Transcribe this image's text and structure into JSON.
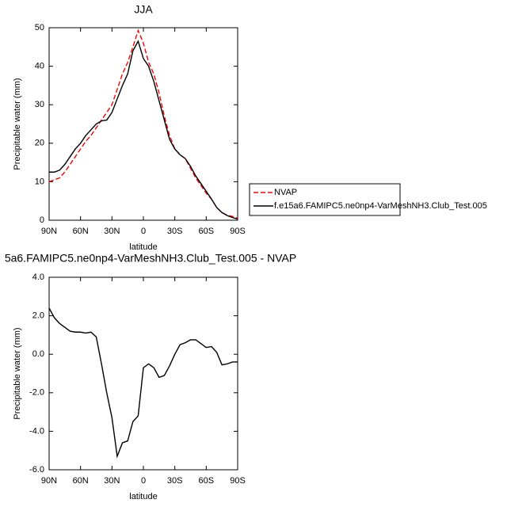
{
  "chart_data": [
    {
      "type": "line",
      "title": "JJA",
      "xlabel": "latitude",
      "ylabel": "Precipitable water (mm)",
      "x": [
        90,
        85,
        80,
        75,
        70,
        65,
        60,
        55,
        50,
        45,
        40,
        35,
        30,
        25,
        20,
        15,
        10,
        5,
        0,
        -5,
        -10,
        -15,
        -20,
        -25,
        -30,
        -35,
        -40,
        -45,
        -50,
        -55,
        -60,
        -65,
        -70,
        -75,
        -80,
        -85,
        -90
      ],
      "series": [
        {
          "name": "NVAP",
          "color": "#ff0000",
          "style": "dashed",
          "values": [
            10,
            10.5,
            11,
            12.5,
            14.5,
            16.5,
            18.5,
            20.5,
            22,
            24,
            26,
            28,
            30,
            34,
            38,
            41,
            45,
            49.3,
            46,
            41,
            38,
            33,
            27,
            22,
            18.5,
            17,
            16,
            13.5,
            11,
            9,
            7,
            5.5,
            3.3,
            2,
            1.3,
            1,
            0.5
          ]
        },
        {
          "name": "f.e15a6.FAMIPC5.ne0np4-VarMeshNH3.Club_Test.005",
          "color": "#000000",
          "style": "solid",
          "values": [
            12.5,
            12.5,
            13,
            14.5,
            16.5,
            18.5,
            20,
            22,
            23.5,
            25,
            25.8,
            26,
            28,
            31.5,
            35,
            38,
            44,
            46.5,
            42,
            40,
            36,
            31,
            26,
            21,
            18.5,
            17,
            16,
            14,
            11.5,
            9.5,
            7.5,
            5.5,
            3.3,
            2,
            1.2,
            0.7,
            0.3
          ]
        }
      ],
      "xlim": [
        90,
        -90
      ],
      "xticks": [
        {
          "value": 90,
          "label": "90N"
        },
        {
          "value": 60,
          "label": "60N"
        },
        {
          "value": 30,
          "label": "30N"
        },
        0,
        {
          "value": -30,
          "label": "30S"
        },
        {
          "value": -60,
          "label": "60S"
        },
        {
          "value": -90,
          "label": "90S"
        }
      ],
      "ylim": [
        0,
        50
      ],
      "yticks": [
        0,
        10,
        20,
        30,
        40,
        50
      ],
      "legend": "outside right"
    },
    {
      "type": "line",
      "title": "5a6.FAMIPC5.ne0np4-VarMeshNH3.Club_Test.005 - NVAP",
      "xlabel": "latitude",
      "ylabel": "Precipitable water (mm)",
      "x": [
        90,
        85,
        80,
        75,
        70,
        65,
        60,
        55,
        50,
        45,
        40,
        35,
        30,
        25,
        20,
        15,
        10,
        5,
        0,
        -5,
        -10,
        -15,
        -20,
        -25,
        -30,
        -35,
        -40,
        -45,
        -50,
        -55,
        -60,
        -65,
        -70,
        -75,
        -80,
        -85,
        -90
      ],
      "values": [
        2.4,
        1.9,
        1.6,
        1.4,
        1.2,
        1.15,
        1.15,
        1.1,
        1.15,
        0.9,
        -0.5,
        -2,
        -3.3,
        -5.3,
        -4.6,
        -4.5,
        -3.5,
        -3.2,
        -0.7,
        -0.5,
        -0.7,
        -1.2,
        -1.1,
        -0.6,
        0,
        0.5,
        0.6,
        0.75,
        0.75,
        0.55,
        0.35,
        0.4,
        0.1,
        -0.55,
        -0.5,
        -0.4,
        -0.4
      ],
      "color": "#000000",
      "xlim": [
        90,
        -90
      ],
      "xticks": [
        {
          "value": 90,
          "label": "90N"
        },
        {
          "value": 60,
          "label": "60N"
        },
        {
          "value": 30,
          "label": "30N"
        },
        0,
        {
          "value": -30,
          "label": "30S"
        },
        {
          "value": -60,
          "label": "60S"
        },
        {
          "value": -90,
          "label": "90S"
        }
      ],
      "ylim": [
        -6,
        4
      ],
      "yticks": [
        {
          "value": -6,
          "label": "-6.0"
        },
        {
          "value": -4,
          "label": "-4.0"
        },
        {
          "value": -2,
          "label": "-2.0"
        },
        {
          "value": 0,
          "label": "0.0"
        },
        {
          "value": 2,
          "label": "2.0"
        },
        {
          "value": 4,
          "label": "4.0"
        }
      ]
    }
  ]
}
